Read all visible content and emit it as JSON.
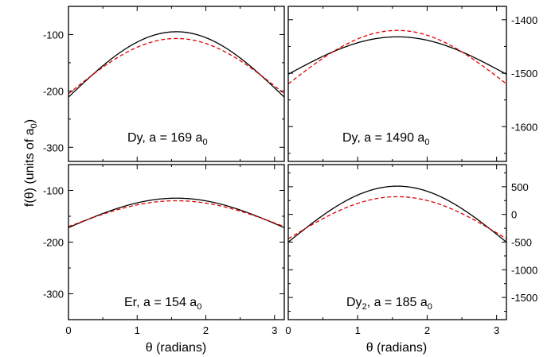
{
  "figure": {
    "ylabel": "f(θ) (units of a",
    "ylabel_sub": "0",
    "ylabel_tail": ")",
    "xlabel": "θ (radians)"
  },
  "chart_data": [
    {
      "type": "line",
      "panel": "top-left",
      "label_main": "Dy, a = 169 a",
      "label_sub": "0",
      "label_tail": "",
      "xlim": [
        0,
        3.14159
      ],
      "ylim": [
        -325,
        -50
      ],
      "x_ticks": [
        0,
        1,
        2,
        3
      ],
      "y_ticks": [
        -300,
        -200,
        -100
      ],
      "y_axis_side": "left",
      "show_x_tick_labels": false,
      "series": [
        {
          "color": "#000000",
          "dash": "solid",
          "offset": -211,
          "amplitude": 116
        },
        {
          "color": "#e00000",
          "dash": "dashed",
          "offset": -205,
          "amplitude": 98
        }
      ]
    },
    {
      "type": "line",
      "panel": "top-right",
      "label_main": "Dy, a = 1490 a",
      "label_sub": "0",
      "label_tail": "",
      "xlim": [
        0,
        3.14159
      ],
      "ylim": [
        -1665,
        -1375
      ],
      "x_ticks": [
        0,
        1,
        2,
        3
      ],
      "y_ticks": [
        -1600,
        -1500,
        -1400
      ],
      "y_axis_side": "right",
      "show_x_tick_labels": false,
      "series": [
        {
          "color": "#000000",
          "dash": "solid",
          "offset": -1502,
          "amplitude": 70
        },
        {
          "color": "#e00000",
          "dash": "dashed",
          "offset": -1520,
          "amplitude": 100
        }
      ]
    },
    {
      "type": "line",
      "panel": "bottom-left",
      "label_main": "Er, a = 154 a",
      "label_sub": "0",
      "label_tail": "",
      "xlim": [
        0,
        3.14159
      ],
      "ylim": [
        -350,
        -50
      ],
      "x_ticks": [
        0,
        1,
        2,
        3
      ],
      "y_ticks": [
        -300,
        -200,
        -100
      ],
      "y_axis_side": "left",
      "show_x_tick_labels": true,
      "series": [
        {
          "color": "#000000",
          "dash": "solid",
          "offset": -172,
          "amplitude": 57
        },
        {
          "color": "#e00000",
          "dash": "dashed",
          "offset": -170,
          "amplitude": 50
        }
      ]
    },
    {
      "type": "line",
      "panel": "bottom-right",
      "label_main": "Dy",
      "label_sub": "2",
      "label_tail": ", a = 185 a",
      "label_sub2": "0",
      "xlim": [
        0,
        3.14159
      ],
      "ylim": [
        -1900,
        900
      ],
      "x_ticks": [
        0,
        1,
        2,
        3
      ],
      "y_ticks": [
        -1500,
        -1000,
        -500,
        0,
        500
      ],
      "y_axis_side": "right",
      "show_x_tick_labels": true,
      "series": [
        {
          "color": "#000000",
          "dash": "solid",
          "offset": -500,
          "amplitude": 1010
        },
        {
          "color": "#e00000",
          "dash": "dashed",
          "offset": -440,
          "amplitude": 760
        }
      ]
    }
  ]
}
